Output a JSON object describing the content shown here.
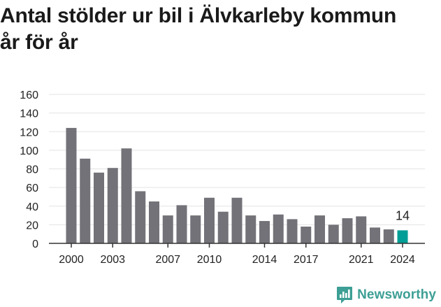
{
  "title": "Antal stölder ur bil i Älvkarleby kommun år för år",
  "brand": {
    "name": "Newsworthy",
    "icon": "newsworthy-logo-icon"
  },
  "colors": {
    "bar": "#737278",
    "highlight": "#009E96",
    "axis": "#333333",
    "grid": "#e3e3e3",
    "text": "#222222",
    "brand": "#3d9f95"
  },
  "chart_data": {
    "type": "bar",
    "title": "Antal stölder ur bil i Älvkarleby kommun år för år",
    "xlabel": "",
    "ylabel": "",
    "categories": [
      2000,
      2001,
      2002,
      2003,
      2004,
      2005,
      2006,
      2007,
      2008,
      2009,
      2010,
      2011,
      2012,
      2013,
      2014,
      2015,
      2016,
      2017,
      2018,
      2019,
      2020,
      2021,
      2022,
      2023,
      2024
    ],
    "values": [
      124,
      91,
      76,
      81,
      102,
      56,
      45,
      30,
      41,
      30,
      49,
      34,
      49,
      30,
      24,
      31,
      26,
      18,
      30,
      20,
      27,
      29,
      17,
      15,
      14
    ],
    "ylim": [
      0,
      160
    ],
    "yticks": [
      0,
      20,
      40,
      60,
      80,
      100,
      120,
      140,
      160
    ],
    "xticks": [
      2000,
      2003,
      2007,
      2010,
      2014,
      2017,
      2021,
      2024
    ],
    "highlight_index": 24,
    "annotation": {
      "index": 24,
      "text": "14"
    },
    "grid": true
  }
}
